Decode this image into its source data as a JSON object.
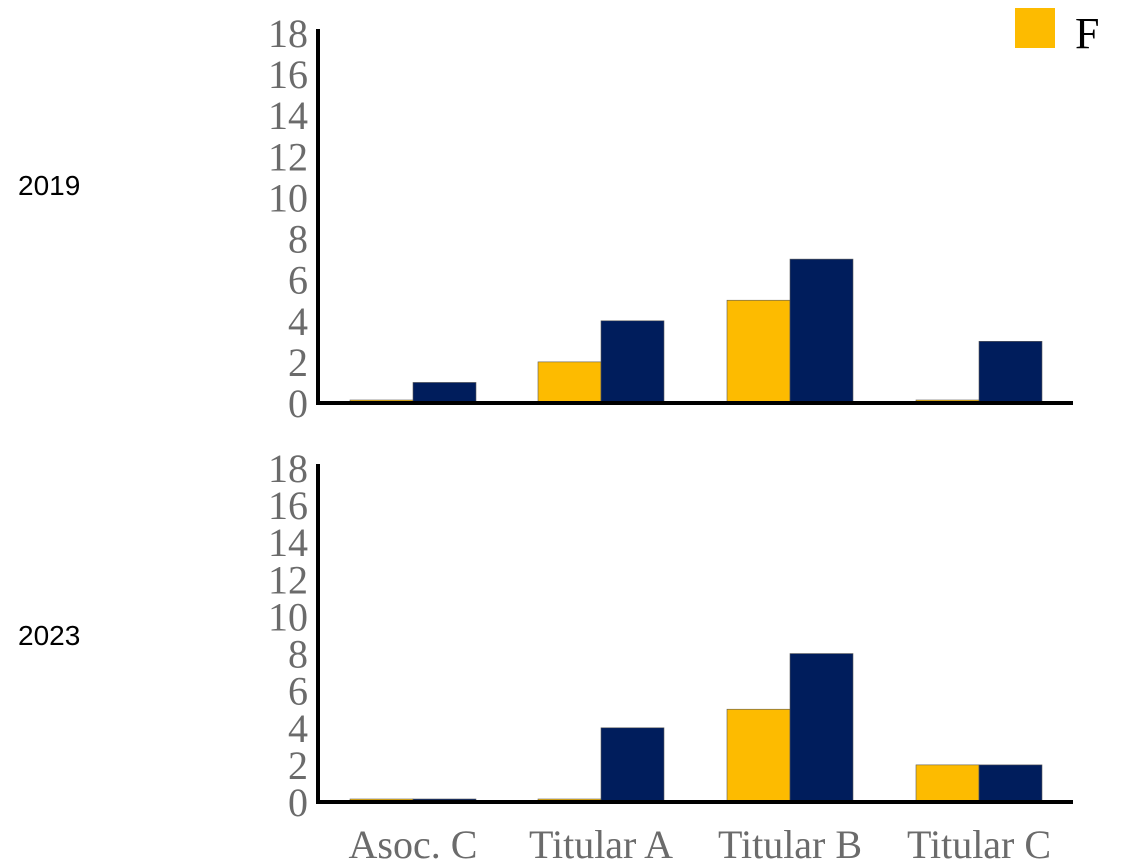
{
  "legend": {
    "items": [
      {
        "label": "F",
        "color": "#fdbb00"
      }
    ]
  },
  "colors": {
    "F": "#fdbb00",
    "M": "#001d5c",
    "axis": "#000000",
    "tick_text": "#6b6b6b"
  },
  "chart_data": [
    {
      "type": "bar",
      "panel_label": "2019",
      "categories": [
        "Asoc. C",
        "Titular A",
        "Titular B",
        "Titular C"
      ],
      "series": [
        {
          "name": "F",
          "values": [
            0,
            2,
            5,
            0
          ]
        },
        {
          "values": [
            1,
            4,
            7,
            3
          ]
        }
      ],
      "ylim": [
        0,
        18
      ],
      "yticks": [
        0,
        2,
        4,
        6,
        8,
        10,
        12,
        14,
        16,
        18
      ],
      "show_category_labels": false,
      "grid": false
    },
    {
      "type": "bar",
      "panel_label": "2023",
      "categories": [
        "Asoc. C",
        "Titular A",
        "Titular B",
        "Titular C"
      ],
      "series": [
        {
          "name": "F",
          "values": [
            0,
            0,
            5,
            2
          ]
        },
        {
          "values": [
            0,
            4,
            8,
            2
          ]
        }
      ],
      "ylim": [
        0,
        18
      ],
      "yticks": [
        0,
        2,
        4,
        6,
        8,
        10,
        12,
        14,
        16,
        18
      ],
      "show_category_labels": true,
      "grid": false
    }
  ]
}
